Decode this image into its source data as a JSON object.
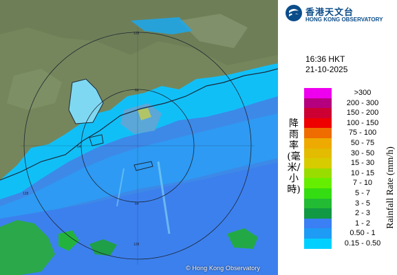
{
  "map": {
    "copyright": "© Hong Kong Observatory",
    "range_ring_labels": [
      "64",
      "128",
      "64",
      "128",
      "64",
      "128"
    ]
  },
  "logo": {
    "chinese_name": "香港天文台",
    "english_name": "HONG KONG OBSERVATORY",
    "icon": "hko-logo-icon"
  },
  "timestamp": {
    "time": "16:36 HKT",
    "date": "21-10-2025"
  },
  "legend": {
    "unit_chinese": "降雨率(毫米/小時)",
    "unit_english": "Rainfall Rate (mm/h)",
    "items": [
      {
        "label": ">300",
        "color": "#ee00ee"
      },
      {
        "label": "200 - 300",
        "color": "#b4007e"
      },
      {
        "label": "150 - 200",
        "color": "#cd0033"
      },
      {
        "label": "100 - 150",
        "color": "#ee0000"
      },
      {
        "label": "75 - 100",
        "color": "#ee6c00"
      },
      {
        "label": "50 - 75",
        "color": "#eeaa00"
      },
      {
        "label": "30 - 50",
        "color": "#e3bb00"
      },
      {
        "label": "15 - 30",
        "color": "#d7cc00"
      },
      {
        "label": "10 - 15",
        "color": "#99dd00"
      },
      {
        "label": "7 - 10",
        "color": "#66ee00"
      },
      {
        "label": "5 - 7",
        "color": "#33dd11"
      },
      {
        "label": "3 - 5",
        "color": "#22bb33"
      },
      {
        "label": "2 - 3",
        "color": "#119944"
      },
      {
        "label": "1 - 2",
        "color": "#3a7ff3"
      },
      {
        "label": "0.50 - 1",
        "color": "#1e9bf5"
      },
      {
        "label": "0.15 - 0.50",
        "color": "#00d0ff"
      }
    ]
  }
}
